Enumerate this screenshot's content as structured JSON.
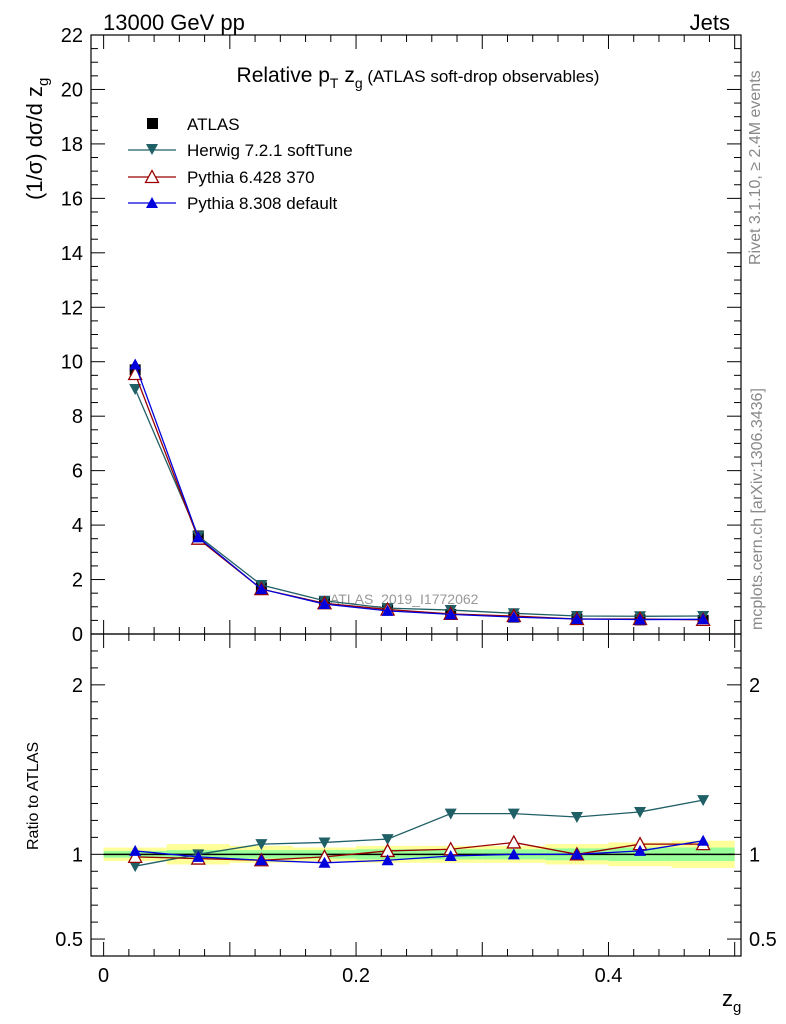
{
  "header": {
    "left": "13000 GeV pp",
    "right": "Jets"
  },
  "side_labels": {
    "top": "Rivet 3.1.10, ≥ 2.4M events",
    "bottom": "mcplots.cern.ch [arXiv:1306.3436]"
  },
  "title": {
    "main": "Relative p",
    "sub_t": "T",
    "mid": " z",
    "sub_g": "g",
    "tail": " (ATLAS soft-drop observables)"
  },
  "analysis_tag": "ATLAS_2019_I1772062",
  "colors": {
    "atlas": "#000000",
    "herwig": "#1f5f66",
    "pythia6": "#990000",
    "pythia8": "#0000dd",
    "band_yellow": "#ffff99",
    "band_green": "#99ff99"
  },
  "chart_data": [
    {
      "type": "scatter",
      "ylabel": {
        "prefix": "(1/σ) dσ/d z",
        "sub": "g"
      },
      "ylim": [
        0,
        22
      ],
      "yticks": [
        0,
        2,
        4,
        6,
        8,
        10,
        12,
        14,
        16,
        18,
        20,
        22
      ],
      "xlim": [
        -0.01,
        0.505
      ],
      "x": [
        0.025,
        0.075,
        0.125,
        0.175,
        0.225,
        0.275,
        0.325,
        0.375,
        0.425,
        0.475
      ],
      "series": [
        {
          "key": "atlas",
          "name": "ATLAS",
          "marker": "square",
          "values": [
            9.7,
            3.6,
            1.7,
            1.15,
            0.88,
            0.72,
            0.62,
            0.55,
            0.52,
            0.5
          ]
        },
        {
          "key": "herwig",
          "name": "Herwig 7.2.1 softTune",
          "marker": "triangle-down",
          "values": [
            9.0,
            3.6,
            1.8,
            1.22,
            0.95,
            0.88,
            0.76,
            0.66,
            0.65,
            0.66
          ]
        },
        {
          "key": "pythia6",
          "name": "Pythia 6.428 370",
          "marker": "triangle-open",
          "values": [
            9.55,
            3.5,
            1.65,
            1.13,
            0.9,
            0.74,
            0.66,
            0.55,
            0.55,
            0.52
          ]
        },
        {
          "key": "pythia8",
          "name": "Pythia 8.308 default",
          "marker": "triangle-up",
          "values": [
            9.9,
            3.55,
            1.65,
            1.1,
            0.85,
            0.72,
            0.62,
            0.55,
            0.53,
            0.54
          ]
        }
      ]
    },
    {
      "type": "scatter",
      "ylabel": "Ratio to ATLAS",
      "xlabel": {
        "prefix": "z",
        "sub": "g"
      },
      "ylim": [
        0.4,
        2.3
      ],
      "yticks": [
        0.5,
        1,
        2
      ],
      "ytick_labels": [
        "0.5",
        "1",
        "2"
      ],
      "xticks": [
        0,
        0.2,
        0.4
      ],
      "xtick_labels": [
        "0",
        "0.2",
        "0.4"
      ],
      "xlim": [
        -0.01,
        0.505
      ],
      "x": [
        0.025,
        0.075,
        0.125,
        0.175,
        0.225,
        0.275,
        0.325,
        0.375,
        0.425,
        0.475
      ],
      "bands": {
        "yellow_halfwidth": [
          0.04,
          0.06,
          0.05,
          0.04,
          0.05,
          0.05,
          0.05,
          0.06,
          0.07,
          0.08
        ],
        "green_halfwidth": [
          0.02,
          0.025,
          0.025,
          0.025,
          0.03,
          0.03,
          0.03,
          0.035,
          0.04,
          0.04
        ]
      },
      "series": [
        {
          "key": "herwig",
          "name": "Herwig 7.2.1 softTune",
          "marker": "triangle-down",
          "values": [
            0.93,
            1.0,
            1.06,
            1.07,
            1.09,
            1.24,
            1.24,
            1.22,
            1.25,
            1.32
          ]
        },
        {
          "key": "pythia6",
          "name": "Pythia 6.428 370",
          "marker": "triangle-open",
          "values": [
            0.985,
            0.975,
            0.965,
            0.985,
            1.02,
            1.03,
            1.07,
            1.0,
            1.06,
            1.06
          ]
        },
        {
          "key": "pythia8",
          "name": "Pythia 8.308 default",
          "marker": "triangle-up",
          "values": [
            1.02,
            0.985,
            0.965,
            0.95,
            0.965,
            0.99,
            1.0,
            1.0,
            1.02,
            1.08
          ]
        }
      ]
    }
  ]
}
